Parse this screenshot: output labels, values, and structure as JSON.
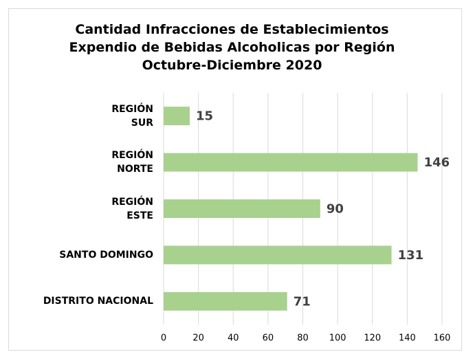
{
  "chart_data": {
    "type": "bar",
    "orientation": "horizontal",
    "title": "Cantidad Infracciones de Establecimientos\nExpendio de Bebidas Alcoholicas por Región\nOctubre-Diciembre 2020",
    "categories": [
      "REGIÓN\nSUR",
      "REGIÓN\nNORTE",
      "REGIÓN\nESTE",
      "SANTO DOMINGO",
      "DISTRITO NACIONAL"
    ],
    "values": [
      15,
      146,
      90,
      131,
      71
    ],
    "color": "#a9d18e",
    "xlim": [
      0,
      160
    ],
    "xticks": [
      0,
      20,
      40,
      60,
      80,
      100,
      120,
      140,
      160
    ],
    "grid": true
  }
}
